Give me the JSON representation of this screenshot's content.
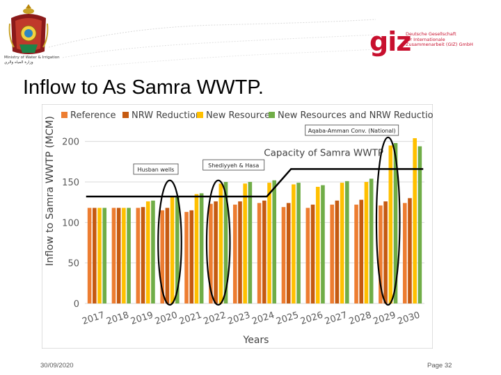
{
  "header": {
    "ministry_name_en": "Ministry of Water & Irrigation",
    "ministry_name_ar": "وزارة المياه والري",
    "giz_logo": "giz",
    "giz_name_lines": [
      "Deutsche Gesellschaft",
      "für Internationale",
      "Zusammenarbeit (GIZ) GmbH"
    ]
  },
  "slide": {
    "title": "Inflow to As Samra WWTP."
  },
  "footer": {
    "date": "30/09/2020",
    "page": "Page 32"
  },
  "colors": {
    "reference": "#ED7D31",
    "nrw_reduction": "#C55A11",
    "new_resources": "#FFC000",
    "new_resources_nrw": "#70AD47"
  },
  "chart_data": {
    "type": "bar",
    "xlabel": "Years",
    "ylabel": "Inflow to Samra WWTP (MCM)",
    "ylim": [
      0,
      210
    ],
    "yticks": [
      0,
      50,
      100,
      150,
      200
    ],
    "grid": true,
    "legend_position": "top",
    "categories": [
      "2017",
      "2018",
      "2019",
      "2020",
      "2021",
      "2022",
      "2023",
      "2024",
      "2025",
      "2026",
      "2027",
      "2028",
      "2029",
      "2030"
    ],
    "series": [
      {
        "name": "Reference",
        "color": "#ED7D31",
        "values": [
          118,
          118,
          118,
          115,
          113,
          123,
          122,
          124,
          119,
          118,
          122,
          122,
          121,
          124
        ]
      },
      {
        "name": "NRW Reduction",
        "color": "#C55A11",
        "values": [
          118,
          118,
          119,
          118,
          115,
          126,
          126,
          127,
          124,
          122,
          127,
          128,
          126,
          130
        ]
      },
      {
        "name": "New Resources",
        "color": "#FFC000",
        "values": [
          118,
          118,
          126,
          132,
          135,
          148,
          148,
          149,
          147,
          144,
          149,
          150,
          195,
          204
        ]
      },
      {
        "name": "New Resources and NRW Reduction",
        "color": "#70AD47",
        "values": [
          118,
          118,
          127,
          133,
          136,
          150,
          150,
          152,
          149,
          146,
          151,
          154,
          198,
          194
        ]
      }
    ],
    "capacity_line": {
      "label": "Capacity of Samra WWTP",
      "points": [
        {
          "x": "2017",
          "y": 132
        },
        {
          "x": "2024",
          "y": 132
        },
        {
          "x": "2025",
          "y": 166
        },
        {
          "x": "2030",
          "y": 166
        }
      ]
    },
    "annotations": [
      {
        "text": "Husban wells",
        "category": "2020"
      },
      {
        "text": "Shediyyeh & Hasa",
        "category": "2022"
      },
      {
        "text": "Aqaba-Amman Conv. (National)",
        "category": "2029"
      }
    ]
  }
}
